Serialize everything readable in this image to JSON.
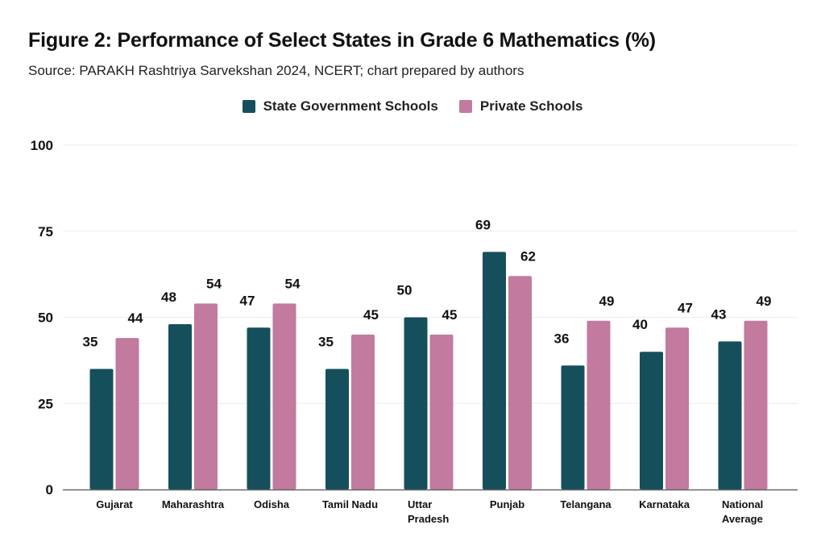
{
  "chart_data": {
    "type": "bar",
    "title": "Figure 2: Performance of Select States in Grade 6 Mathematics (%)",
    "subtitle": "Source: PARAKH Rashtriya Sarvekshan 2024, NCERT; chart prepared by authors",
    "xlabel": "",
    "ylabel": "",
    "ylim": [
      0,
      100
    ],
    "yticks": [
      0,
      25,
      50,
      75,
      100
    ],
    "grid": true,
    "legend_position": "top-center",
    "categories": [
      [
        "Gujarat"
      ],
      [
        "Maharashtra"
      ],
      [
        "Odisha"
      ],
      [
        "Tamil Nadu"
      ],
      [
        "Uttar",
        "Pradesh"
      ],
      [
        "Punjab"
      ],
      [
        "Telangana"
      ],
      [
        "Karnataka"
      ],
      [
        "National",
        "Average"
      ]
    ],
    "series": [
      {
        "name": "State Government Schools",
        "color": "#164F5C",
        "values": [
          35,
          48,
          47,
          35,
          50,
          69,
          36,
          40,
          43
        ]
      },
      {
        "name": "Private Schools",
        "color": "#C27A9F",
        "values": [
          44,
          54,
          54,
          45,
          45,
          62,
          49,
          47,
          49
        ]
      }
    ]
  }
}
